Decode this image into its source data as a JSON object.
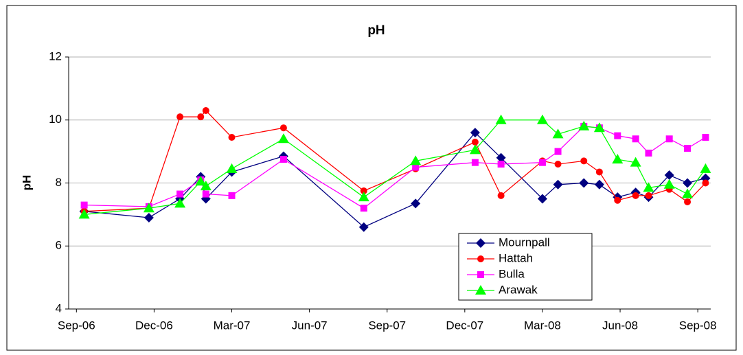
{
  "chart_data": {
    "type": "line",
    "title": "pH",
    "y_label": "pH",
    "xlim": [
      -0.3,
      24.5
    ],
    "xticks": [
      {
        "value": 0,
        "label": "Sep-06"
      },
      {
        "value": 3,
        "label": "Dec-06"
      },
      {
        "value": 6,
        "label": "Mar-07"
      },
      {
        "value": 9,
        "label": "Jun-07"
      },
      {
        "value": 12,
        "label": "Sep-07"
      },
      {
        "value": 15,
        "label": "Dec-07"
      },
      {
        "value": 18,
        "label": "Mar-08"
      },
      {
        "value": 21,
        "label": "Jun-08"
      },
      {
        "value": 24,
        "label": "Sep-08"
      }
    ],
    "ylim": [
      4,
      12
    ],
    "yticks": [
      4,
      6,
      8,
      10,
      12
    ],
    "grid": true,
    "legend": "lower-right",
    "series": [
      {
        "name": "Mournpall",
        "color": "#000080",
        "marker": "diamond",
        "x": [
          0.3,
          2.8,
          4.0,
          4.8,
          5.0,
          6.0,
          8.0,
          11.1,
          13.1,
          15.4,
          16.4,
          18.0,
          18.6,
          19.6,
          20.2,
          20.9,
          21.6,
          22.1,
          22.9,
          23.6,
          24.3
        ],
        "values": [
          7.1,
          6.9,
          7.5,
          8.2,
          7.5,
          8.35,
          8.85,
          6.6,
          7.35,
          9.6,
          8.8,
          7.5,
          7.95,
          8.0,
          7.95,
          7.55,
          7.7,
          7.55,
          8.25,
          8.0,
          8.15
        ]
      },
      {
        "name": "Hattah",
        "color": "#ff0000",
        "marker": "circle",
        "x": [
          0.3,
          2.8,
          4.0,
          4.8,
          5.0,
          6.0,
          8.0,
          11.1,
          13.1,
          15.4,
          16.4,
          18.0,
          18.6,
          19.6,
          20.2,
          20.9,
          21.6,
          22.1,
          22.9,
          23.6,
          24.3
        ],
        "values": [
          7.1,
          7.2,
          10.1,
          10.1,
          10.3,
          9.45,
          9.75,
          7.75,
          8.45,
          9.3,
          7.6,
          8.7,
          8.6,
          8.7,
          8.35,
          7.45,
          7.6,
          7.6,
          7.8,
          7.4,
          8.0
        ]
      },
      {
        "name": "Bulla",
        "color": "#ff00ff",
        "marker": "square",
        "x": [
          0.3,
          2.8,
          4.0,
          4.8,
          5.0,
          6.0,
          8.0,
          11.1,
          13.1,
          15.4,
          16.4,
          18.0,
          18.6,
          19.6,
          20.2,
          20.9,
          21.6,
          22.1,
          22.9,
          23.6,
          24.3
        ],
        "values": [
          7.3,
          7.25,
          7.65,
          8.1,
          7.65,
          7.6,
          8.75,
          7.2,
          8.5,
          8.65,
          8.6,
          8.65,
          9.0,
          9.8,
          9.75,
          9.5,
          9.4,
          8.95,
          9.4,
          9.1,
          9.45
        ]
      },
      {
        "name": "Arawak",
        "color": "#00ff00",
        "marker": "triangle",
        "x": [
          0.3,
          2.8,
          4.0,
          4.8,
          5.0,
          6.0,
          8.0,
          11.1,
          13.1,
          15.4,
          16.4,
          18.0,
          18.6,
          19.6,
          20.2,
          20.9,
          21.6,
          22.1,
          22.9,
          23.6,
          24.3
        ],
        "values": [
          7.0,
          7.2,
          7.35,
          8.05,
          7.9,
          8.45,
          9.4,
          7.55,
          8.7,
          9.05,
          10.0,
          10.0,
          9.55,
          9.8,
          9.75,
          8.75,
          8.65,
          7.85,
          7.95,
          7.65,
          8.45
        ]
      }
    ]
  }
}
